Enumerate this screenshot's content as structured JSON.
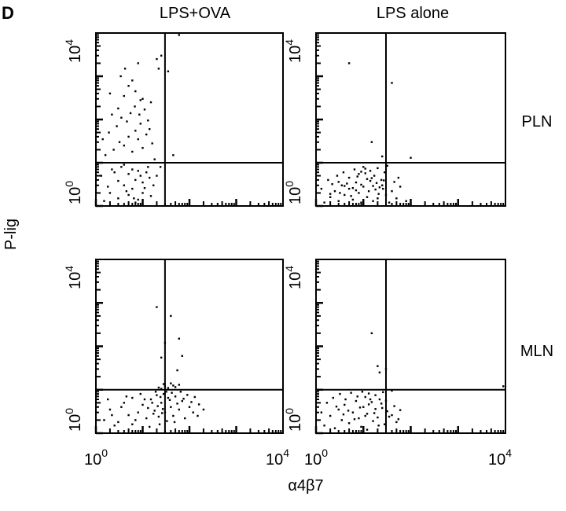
{
  "figure": {
    "panel_letter": "D",
    "ylabel": "P-lig",
    "xlabel": "α4β7",
    "columns": [
      "LPS+OVA",
      "LPS alone"
    ],
    "rows": [
      "PLN",
      "MLN"
    ]
  },
  "chart_data": [
    {
      "type": "scatter",
      "title": "LPS+OVA",
      "row_label": "PLN",
      "xlabel": "α4β7",
      "ylabel": "P-lig",
      "xscale": "log",
      "yscale": "log",
      "xlim": [
        1,
        10000
      ],
      "ylim": [
        1,
        10000
      ],
      "x_ticks": [
        "10^0",
        "10^4"
      ],
      "y_ticks": [
        "10^0",
        "10^4"
      ],
      "gates": {
        "x": 30,
        "y": 10
      },
      "points": [
        [
          1.5,
          1.3
        ],
        [
          2,
          2
        ],
        [
          3,
          1.5
        ],
        [
          4,
          3
        ],
        [
          5,
          1.8
        ],
        [
          6,
          2.5
        ],
        [
          7,
          4
        ],
        [
          8,
          1.4
        ],
        [
          10,
          3.5
        ],
        [
          12,
          6
        ],
        [
          1.3,
          5
        ],
        [
          2.5,
          6
        ],
        [
          3.5,
          8
        ],
        [
          4.5,
          2.2
        ],
        [
          6,
          7
        ],
        [
          7,
          1.2
        ],
        [
          9,
          5
        ],
        [
          11,
          2.6
        ],
        [
          13,
          8
        ],
        [
          15,
          1.7
        ],
        [
          1.8,
          2.8
        ],
        [
          2.2,
          7
        ],
        [
          3,
          3.8
        ],
        [
          4,
          9
        ],
        [
          5,
          5.5
        ],
        [
          6.5,
          1.5
        ],
        [
          8,
          6.5
        ],
        [
          10,
          2
        ],
        [
          14,
          4.5
        ],
        [
          17,
          3
        ],
        [
          1.6,
          15
        ],
        [
          2.4,
          20
        ],
        [
          3.2,
          30
        ],
        [
          4,
          25
        ],
        [
          5,
          40
        ],
        [
          6,
          18
        ],
        [
          7,
          55
        ],
        [
          8,
          35
        ],
        [
          9,
          80
        ],
        [
          10,
          22
        ],
        [
          12,
          45
        ],
        [
          14,
          60
        ],
        [
          16,
          28
        ],
        [
          1.9,
          50
        ],
        [
          2.8,
          70
        ],
        [
          3.5,
          110
        ],
        [
          4.6,
          90
        ],
        [
          5.5,
          140
        ],
        [
          6.8,
          200
        ],
        [
          8.5,
          130
        ],
        [
          10,
          300
        ],
        [
          11,
          170
        ],
        [
          13,
          95
        ],
        [
          15,
          250
        ],
        [
          2.2,
          130
        ],
        [
          3,
          180
        ],
        [
          4,
          350
        ],
        [
          5,
          600
        ],
        [
          7,
          450
        ],
        [
          9,
          280
        ],
        [
          2,
          400
        ],
        [
          3.4,
          1000
        ],
        [
          6,
          800
        ],
        [
          4.2,
          1500
        ],
        [
          8,
          2000
        ],
        [
          20,
          2500
        ],
        [
          22,
          1500
        ],
        [
          25,
          3000
        ],
        [
          35,
          1300
        ],
        [
          45,
          15
        ],
        [
          60,
          9000
        ],
        [
          1.4,
          35
        ],
        [
          18,
          12
        ],
        [
          20,
          5
        ],
        [
          24,
          8
        ]
      ]
    },
    {
      "type": "scatter",
      "title": "LPS alone",
      "row_label": "PLN",
      "xlabel": "α4β7",
      "ylabel": "P-lig",
      "xscale": "log",
      "yscale": "log",
      "xlim": [
        1,
        10000
      ],
      "ylim": [
        1,
        10000
      ],
      "x_ticks": [
        "10^0",
        "10^4"
      ],
      "y_ticks": [
        "10^0",
        "10^4"
      ],
      "gates": {
        "x": 30,
        "y": 10
      },
      "points": [
        [
          1.5,
          1.2
        ],
        [
          2,
          1.6
        ],
        [
          2.5,
          2.2
        ],
        [
          3,
          1.3
        ],
        [
          3.5,
          3
        ],
        [
          4,
          1.8
        ],
        [
          5,
          2.5
        ],
        [
          6,
          1.4
        ],
        [
          7,
          3.5
        ],
        [
          8,
          2
        ],
        [
          9,
          1.2
        ],
        [
          10,
          2.8
        ],
        [
          12,
          1.6
        ],
        [
          14,
          3.8
        ],
        [
          16,
          1.3
        ],
        [
          18,
          2.4
        ],
        [
          20,
          1.5
        ],
        [
          25,
          3
        ],
        [
          30,
          1.8
        ],
        [
          35,
          1.2
        ],
        [
          40,
          2.2
        ],
        [
          50,
          1.5
        ],
        [
          60,
          2.8
        ],
        [
          80,
          1.3
        ],
        [
          1.8,
          4
        ],
        [
          2.8,
          5
        ],
        [
          3.8,
          6
        ],
        [
          5,
          4.5
        ],
        [
          6.5,
          7
        ],
        [
          8,
          5.5
        ],
        [
          10,
          8
        ],
        [
          12,
          4.2
        ],
        [
          14,
          6.5
        ],
        [
          17,
          5
        ],
        [
          20,
          7.5
        ],
        [
          24,
          4
        ],
        [
          28,
          6
        ],
        [
          32,
          8.5
        ],
        [
          1.3,
          2.5
        ],
        [
          2.2,
          3.2
        ],
        [
          3.2,
          2
        ],
        [
          4.5,
          3.3
        ],
        [
          6,
          2.6
        ],
        [
          7.5,
          4.8
        ],
        [
          9,
          3.1
        ],
        [
          11,
          5.7
        ],
        [
          13,
          2.2
        ],
        [
          15,
          4.4
        ],
        [
          19,
          3.4
        ],
        [
          22,
          2.7
        ],
        [
          27,
          3.9
        ],
        [
          15,
          30
        ],
        [
          25,
          14
        ],
        [
          100,
          13
        ],
        [
          2,
          1.9
        ],
        [
          3,
          3.6
        ],
        [
          4,
          2.9
        ],
        [
          5.5,
          1.7
        ],
        [
          7,
          2.3
        ],
        [
          16,
          2.9
        ],
        [
          21,
          1.9
        ],
        [
          26,
          2.5
        ],
        [
          45,
          3.6
        ],
        [
          55,
          4.5
        ],
        [
          9,
          6.2
        ],
        [
          11,
          7.3
        ],
        [
          5,
          2000
        ],
        [
          40,
          700
        ]
      ]
    },
    {
      "type": "scatter",
      "title": "LPS+OVA",
      "row_label": "MLN",
      "xlabel": "α4β7",
      "ylabel": "P-lig",
      "xscale": "log",
      "yscale": "log",
      "xlim": [
        1,
        10000
      ],
      "ylim": [
        1,
        10000
      ],
      "x_ticks": [
        "10^0",
        "10^4"
      ],
      "y_ticks": [
        "10^0",
        "10^4"
      ],
      "gates": {
        "x": 30,
        "y": 10
      },
      "points": [
        [
          1.5,
          2
        ],
        [
          2,
          3.5
        ],
        [
          3,
          1.8
        ],
        [
          4,
          5
        ],
        [
          5,
          2.6
        ],
        [
          6,
          6.5
        ],
        [
          8,
          3
        ],
        [
          10,
          4.5
        ],
        [
          12,
          2.2
        ],
        [
          15,
          6
        ],
        [
          18,
          3.3
        ],
        [
          20,
          7.5
        ],
        [
          22,
          2.4
        ],
        [
          25,
          5
        ],
        [
          28,
          8
        ],
        [
          30,
          3
        ],
        [
          35,
          6.5
        ],
        [
          40,
          4
        ],
        [
          45,
          2.5
        ],
        [
          50,
          7
        ],
        [
          60,
          3.5
        ],
        [
          70,
          5.5
        ],
        [
          80,
          2.2
        ],
        [
          100,
          4
        ],
        [
          120,
          3
        ],
        [
          150,
          2.5
        ],
        [
          200,
          3.5
        ],
        [
          2.5,
          1.5
        ],
        [
          3.5,
          4
        ],
        [
          4.5,
          7
        ],
        [
          7,
          2
        ],
        [
          9,
          8
        ],
        [
          11,
          6
        ],
        [
          13,
          3.8
        ],
        [
          16,
          5
        ],
        [
          19,
          9
        ],
        [
          21,
          4.2
        ],
        [
          24,
          6.8
        ],
        [
          27,
          3.6
        ],
        [
          32,
          9
        ],
        [
          38,
          5.8
        ],
        [
          42,
          8.5
        ],
        [
          55,
          4.8
        ],
        [
          65,
          9
        ],
        [
          75,
          6.2
        ],
        [
          90,
          7.6
        ],
        [
          110,
          5.2
        ],
        [
          130,
          6.8
        ],
        [
          160,
          4.6
        ],
        [
          1.8,
          6
        ],
        [
          2.2,
          2.6
        ],
        [
          6,
          1.6
        ],
        [
          14,
          1.4
        ],
        [
          17,
          2.8
        ],
        [
          23,
          1.6
        ],
        [
          26,
          2.9
        ],
        [
          33,
          1.9
        ],
        [
          48,
          1.8
        ],
        [
          25,
          10.5
        ],
        [
          30,
          12
        ],
        [
          35,
          11
        ],
        [
          40,
          14
        ],
        [
          45,
          12.5
        ],
        [
          50,
          11.5
        ],
        [
          28,
          13.5
        ],
        [
          60,
          13
        ],
        [
          22,
          11.2
        ],
        [
          20,
          800
        ],
        [
          30,
          120
        ],
        [
          40,
          500
        ],
        [
          70,
          60
        ],
        [
          25,
          55
        ],
        [
          60,
          150
        ],
        [
          55,
          28
        ]
      ]
    },
    {
      "type": "scatter",
      "title": "LPS alone",
      "row_label": "MLN",
      "xlabel": "α4β7",
      "ylabel": "P-lig",
      "xscale": "log",
      "yscale": "log",
      "xlim": [
        1,
        10000
      ],
      "ylim": [
        1,
        10000
      ],
      "x_ticks": [
        "10^0",
        "10^4"
      ],
      "y_ticks": [
        "10^0",
        "10^4"
      ],
      "gates": {
        "x": 30,
        "y": 10
      },
      "points": [
        [
          1.5,
          1.5
        ],
        [
          2,
          2.5
        ],
        [
          2.5,
          1.3
        ],
        [
          3,
          3.5
        ],
        [
          3.5,
          2
        ],
        [
          4,
          4.5
        ],
        [
          5,
          1.7
        ],
        [
          6,
          3
        ],
        [
          7,
          5.5
        ],
        [
          8,
          2.2
        ],
        [
          9,
          1.4
        ],
        [
          10,
          4
        ],
        [
          12,
          2.8
        ],
        [
          14,
          6
        ],
        [
          16,
          1.9
        ],
        [
          18,
          3.6
        ],
        [
          20,
          2.3
        ],
        [
          24,
          4.8
        ],
        [
          28,
          1.6
        ],
        [
          32,
          3.2
        ],
        [
          40,
          2.6
        ],
        [
          50,
          1.8
        ],
        [
          60,
          3.4
        ],
        [
          1.7,
          5
        ],
        [
          2.3,
          6.5
        ],
        [
          3.2,
          8
        ],
        [
          4.2,
          6
        ],
        [
          5.5,
          8.5
        ],
        [
          7.5,
          7
        ],
        [
          9.5,
          9
        ],
        [
          11,
          6.8
        ],
        [
          13,
          8.2
        ],
        [
          15,
          5.2
        ],
        [
          18,
          7.5
        ],
        [
          22,
          6
        ],
        [
          26,
          8.8
        ],
        [
          1.3,
          3
        ],
        [
          2.7,
          4.1
        ],
        [
          3.8,
          2.7
        ],
        [
          4.8,
          3.3
        ],
        [
          6.5,
          2.1
        ],
        [
          8.5,
          3.9
        ],
        [
          11,
          2.5
        ],
        [
          13,
          4.6
        ],
        [
          17,
          2.9
        ],
        [
          21,
          1.5
        ],
        [
          25,
          3.8
        ],
        [
          30,
          5.6
        ],
        [
          35,
          2.4
        ],
        [
          45,
          4.2
        ],
        [
          55,
          2.1
        ],
        [
          9000,
          12
        ],
        [
          15,
          200
        ],
        [
          20,
          35
        ],
        [
          22,
          25
        ],
        [
          30,
          30
        ],
        [
          40,
          9.5
        ],
        [
          12,
          1.2
        ]
      ]
    }
  ]
}
